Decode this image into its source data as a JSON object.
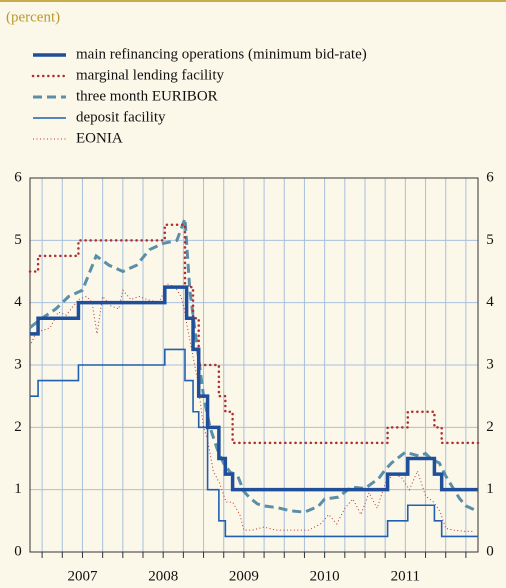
{
  "chart_data": {
    "type": "line",
    "subtitle": "(percent)",
    "xlim": [
      2006.85,
      2012.4
    ],
    "xticks": [
      {
        "value": 2007.5,
        "label": "2007"
      },
      {
        "value": 2008.5,
        "label": "2008"
      },
      {
        "value": 2009.5,
        "label": "2009"
      },
      {
        "value": 2010.5,
        "label": "2010"
      },
      {
        "value": 2011.5,
        "label": "2011"
      }
    ],
    "xgrid": [
      2007,
      2007.25,
      2007.5,
      2007.75,
      2008,
      2008.25,
      2008.5,
      2008.75,
      2009,
      2009.25,
      2009.5,
      2009.75,
      2010,
      2010.25,
      2010.5,
      2010.75,
      2011,
      2011.25,
      2011.5,
      2011.75,
      2012,
      2012.25
    ],
    "ylim": [
      0,
      6
    ],
    "yticks": [
      0,
      1,
      2,
      3,
      4,
      5,
      6
    ],
    "grid": true,
    "series": [
      {
        "name": "main refinancing operations (minimum bid-rate)",
        "color": "#1f4f9a",
        "style": "thick",
        "step": true,
        "x": [
          2006.85,
          2006.95,
          2007.19,
          2007.45,
          2008.52,
          2008.79,
          2008.87,
          2008.94,
          2009.05,
          2009.19,
          2009.27,
          2009.36,
          2011.28,
          2011.53,
          2011.86,
          2011.95
        ],
        "values": [
          3.5,
          3.75,
          3.75,
          4.0,
          4.25,
          3.75,
          3.25,
          2.5,
          2.0,
          1.5,
          1.25,
          1.0,
          1.25,
          1.5,
          1.25,
          1.0
        ]
      },
      {
        "name": "marginal lending facility",
        "color": "#b03030",
        "style": "dotted",
        "step": true,
        "x": [
          2006.85,
          2006.95,
          2007.19,
          2007.45,
          2008.52,
          2008.77,
          2008.87,
          2008.94,
          2009.05,
          2009.19,
          2009.27,
          2009.36,
          2011.28,
          2011.53,
          2011.86,
          2011.95
        ],
        "values": [
          4.5,
          4.75,
          4.75,
          5.0,
          5.25,
          4.25,
          3.75,
          3.0,
          3.0,
          2.5,
          2.25,
          1.75,
          2.0,
          2.25,
          2.0,
          1.75
        ]
      },
      {
        "name": "three month EURIBOR",
        "color": "#5b8fa8",
        "style": "dashed",
        "step": false,
        "x": [
          2006.85,
          2007.0,
          2007.17,
          2007.33,
          2007.5,
          2007.67,
          2007.83,
          2008.0,
          2008.17,
          2008.33,
          2008.5,
          2008.67,
          2008.77,
          2008.83,
          2008.92,
          2009.0,
          2009.08,
          2009.17,
          2009.25,
          2009.33,
          2009.42,
          2009.5,
          2009.58,
          2009.67,
          2009.75,
          2009.92,
          2010.08,
          2010.25,
          2010.42,
          2010.5,
          2010.67,
          2010.83,
          2011.0,
          2011.17,
          2011.25,
          2011.33,
          2011.5,
          2011.67,
          2011.75,
          2011.83,
          2011.92,
          2012.0,
          2012.08,
          2012.17,
          2012.25,
          2012.4
        ],
        "values": [
          3.6,
          3.75,
          3.9,
          4.1,
          4.2,
          4.75,
          4.6,
          4.5,
          4.6,
          4.85,
          4.95,
          5.0,
          5.35,
          4.2,
          3.3,
          2.5,
          2.0,
          1.65,
          1.42,
          1.28,
          1.23,
          0.97,
          0.86,
          0.77,
          0.74,
          0.71,
          0.66,
          0.64,
          0.73,
          0.85,
          0.88,
          1.04,
          1.02,
          1.18,
          1.32,
          1.43,
          1.6,
          1.54,
          1.58,
          1.48,
          1.43,
          1.22,
          1.05,
          0.86,
          0.74,
          0.65
        ]
      },
      {
        "name": "deposit facility",
        "color": "#2060b0",
        "style": "thin",
        "step": true,
        "x": [
          2006.85,
          2006.95,
          2007.19,
          2007.45,
          2008.52,
          2008.77,
          2008.87,
          2008.94,
          2009.05,
          2009.19,
          2009.27,
          2011.28,
          2011.53,
          2011.86,
          2011.95
        ],
        "values": [
          2.5,
          2.75,
          2.75,
          3.0,
          3.25,
          2.75,
          2.25,
          2.0,
          1.0,
          0.5,
          0.25,
          0.5,
          0.75,
          0.5,
          0.25
        ]
      },
      {
        "name": "EONIA",
        "color": "#c03030",
        "style": "thin-dotted",
        "step": false,
        "x": [
          2006.85,
          2006.95,
          2007.0,
          2007.1,
          2007.2,
          2007.3,
          2007.45,
          2007.55,
          2007.62,
          2007.68,
          2007.75,
          2007.85,
          2007.95,
          2008.0,
          2008.1,
          2008.2,
          2008.3,
          2008.45,
          2008.55,
          2008.65,
          2008.72,
          2008.76,
          2008.8,
          2008.86,
          2008.92,
          2008.96,
          2009.0,
          2009.05,
          2009.12,
          2009.2,
          2009.28,
          2009.36,
          2009.45,
          2009.5,
          2009.6,
          2009.75,
          2009.9,
          2010.0,
          2010.15,
          2010.3,
          2010.45,
          2010.55,
          2010.65,
          2010.75,
          2010.85,
          2010.95,
          2011.05,
          2011.15,
          2011.25,
          2011.35,
          2011.45,
          2011.55,
          2011.65,
          2011.75,
          2011.85,
          2011.93,
          2012.0,
          2012.1,
          2012.25,
          2012.35
        ],
        "values": [
          3.3,
          3.6,
          3.55,
          3.6,
          3.85,
          3.8,
          4.05,
          4.1,
          4.0,
          3.5,
          4.1,
          3.95,
          3.9,
          4.2,
          4.05,
          4.1,
          4.05,
          4.0,
          4.3,
          4.25,
          4.1,
          3.9,
          3.6,
          3.2,
          2.8,
          2.4,
          2.0,
          1.8,
          1.3,
          1.1,
          0.8,
          0.8,
          0.6,
          0.35,
          0.35,
          0.4,
          0.35,
          0.35,
          0.35,
          0.35,
          0.45,
          0.6,
          0.45,
          0.7,
          0.85,
          0.6,
          0.95,
          0.7,
          1.1,
          1.25,
          1.2,
          1.0,
          1.3,
          0.9,
          0.8,
          0.65,
          0.38,
          0.35,
          0.33,
          0.33
        ]
      }
    ]
  }
}
